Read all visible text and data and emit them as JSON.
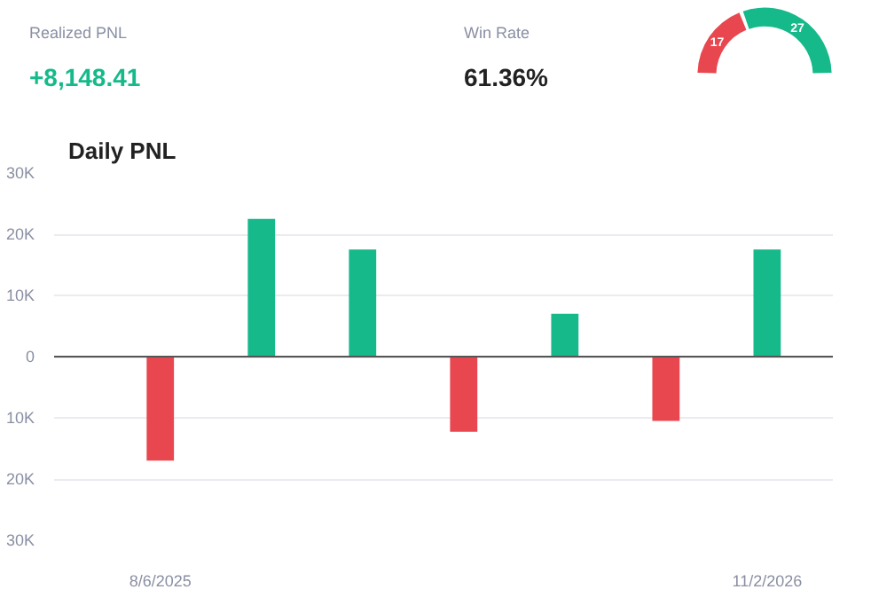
{
  "chart_data": [
    {
      "type": "other",
      "annotations": [
        "Realized PNL",
        "+8,148.41",
        "Win Rate",
        "61.36%"
      ]
    },
    {
      "type": "donut",
      "categories": [
        null,
        null
      ],
      "values": [
        17,
        27
      ],
      "colors": [
        "#e8474f",
        "#16b98a"
      ],
      "data_labels": true
    },
    {
      "type": "bar",
      "title": "Daily PNL",
      "categories": [
        "8/6/2025",
        null,
        null,
        null,
        null,
        null,
        "11/2/2026"
      ],
      "values": [
        -17000,
        22500,
        17500,
        -12300,
        7000,
        -10500,
        17500
      ],
      "colors": [
        "#e8474f",
        "#16b98a",
        "#16b98a",
        "#e8474f",
        "#16b98a",
        "#e8474f",
        "#16b98a"
      ],
      "ylim": [
        -30000,
        30000
      ],
      "yticks": [
        {
          "value": -30000,
          "label": "30K"
        },
        {
          "value": -20000,
          "label": "20K"
        },
        {
          "value": -10000,
          "label": "10K"
        },
        0,
        {
          "value": 10000,
          "label": "10K"
        },
        {
          "value": 20000,
          "label": "20K"
        },
        {
          "value": 30000,
          "label": "30K"
        }
      ],
      "grid": "y",
      "ref_lines": [
        {
          "axis": "y",
          "value": 0,
          "color": "#555555"
        }
      ]
    }
  ]
}
